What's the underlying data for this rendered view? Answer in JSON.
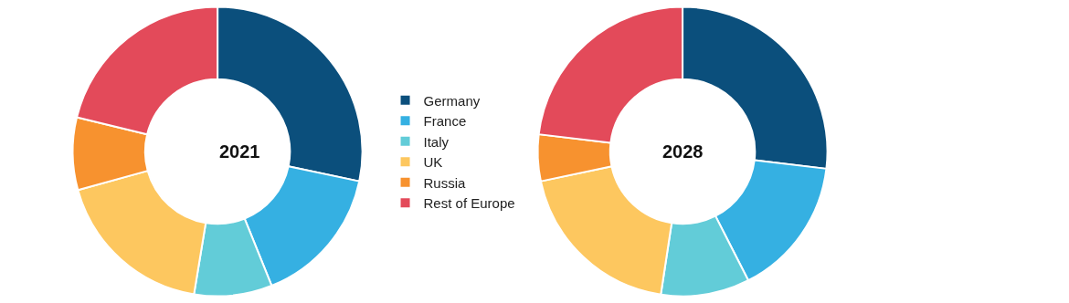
{
  "chart_data": {
    "type": "donut",
    "categories": [
      "Germany",
      "France",
      "Italy",
      "UK",
      "Russia",
      "Rest of Europe"
    ],
    "colors": [
      "#0b4f7c",
      "#35b0e2",
      "#62ccd8",
      "#fdc75f",
      "#f7922f",
      "#e34a5a"
    ],
    "legend": "right",
    "series": [
      {
        "name": "2021",
        "values": [
          28.3,
          15.6,
          8.7,
          18.1,
          8.1,
          21.2
        ]
      },
      {
        "name": "2028",
        "values": [
          26.9,
          15.6,
          9.9,
          19.3,
          5.2,
          23.1
        ]
      }
    ]
  }
}
